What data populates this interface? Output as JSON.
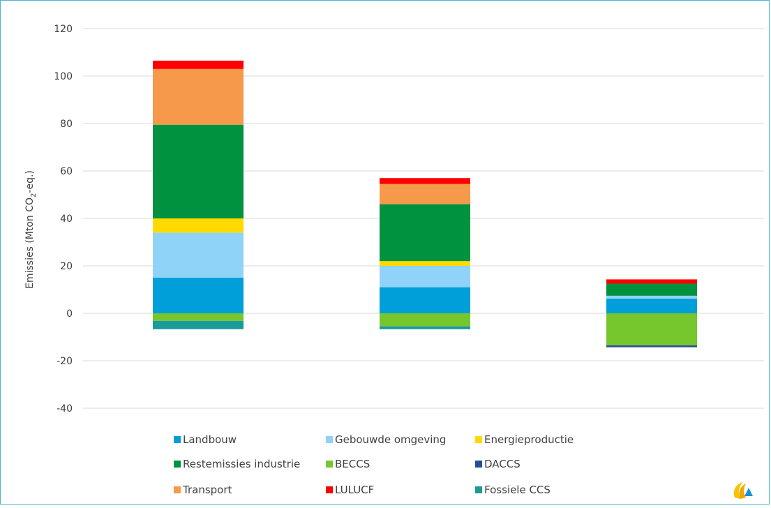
{
  "chart_data": {
    "type": "bar",
    "stacked": true,
    "title": "",
    "xlabel": "",
    "ylabel": "Emissies (Mton CO2-eq.)",
    "ylabel_parts": {
      "pre": "Emissies (Mton CO",
      "sub": "2",
      "post": "-eq.)"
    },
    "ylim": [
      -40,
      120
    ],
    "yticks": [
      -40,
      -20,
      0,
      20,
      40,
      60,
      80,
      100,
      120
    ],
    "grid": true,
    "legend_position": "bottom",
    "categories": [
      "",
      "",
      ""
    ],
    "series": [
      {
        "name": "Landbouw",
        "color": "#009fda",
        "values": [
          15,
          11,
          6.2
        ]
      },
      {
        "name": "Gebouwde omgeving",
        "color": "#8fd3f8",
        "values": [
          19,
          9,
          1.2
        ]
      },
      {
        "name": "Energieproductie",
        "color": "#ffda00",
        "values": [
          6,
          2,
          0
        ]
      },
      {
        "name": "Restemissies industrie",
        "color": "#00923f",
        "values": [
          39.5,
          24,
          5.1
        ]
      },
      {
        "name": "BECCS",
        "color": "#75c72d",
        "values": [
          -3.2,
          -5.5,
          -13.5
        ]
      },
      {
        "name": "DACCS",
        "color": "#264d96",
        "values": [
          0,
          0,
          -0.8
        ]
      },
      {
        "name": "Transport",
        "color": "#f7994a",
        "values": [
          23.5,
          8.5,
          0
        ]
      },
      {
        "name": "LULUCF",
        "color": "#ff0000",
        "values": [
          3.5,
          2.5,
          1.8
        ]
      },
      {
        "name": "Fossiele CCS",
        "color": "#1a9b9a",
        "values": [
          -3.5,
          -1.2,
          0
        ]
      }
    ]
  }
}
